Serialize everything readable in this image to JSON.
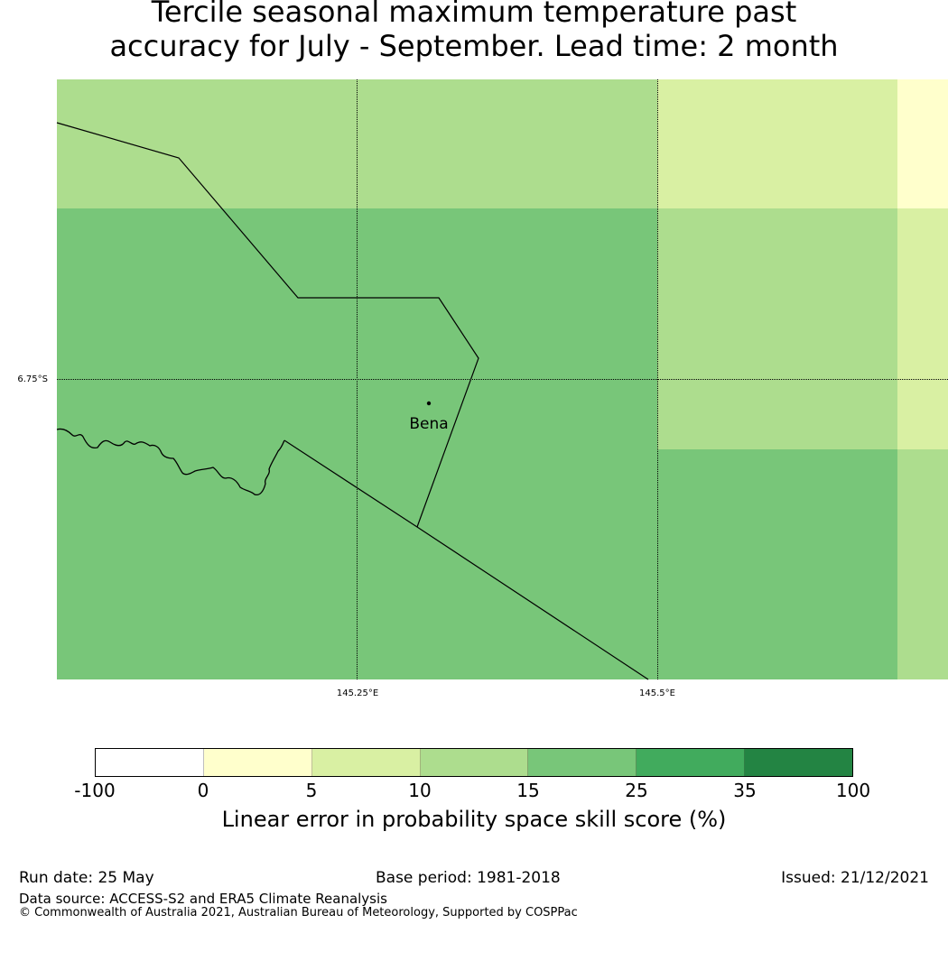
{
  "title": {
    "line1": "Tercile seasonal maximum temperature past",
    "line2": "accuracy for July - September. Lead time: 2 month"
  },
  "map": {
    "place_name": "Bena",
    "lon_labels": [
      "145.25°E",
      "145.5°E"
    ],
    "lat_labels": [
      "6.75°S"
    ],
    "colors": {
      "c0_5": "#ffffcc",
      "c5_10": "#d9f0a3",
      "c10_15": "#addd8e",
      "c15_25": "#78c679",
      "c25_35": "#41ab5d",
      "c35_100": "#238443",
      "cneg": "#ffffff"
    },
    "icons": [
      "border-line",
      "coastline",
      "town-marker"
    ]
  },
  "colorbar": {
    "colors": [
      "#ffffff",
      "#ffffcc",
      "#d9f0a3",
      "#addd8e",
      "#78c679",
      "#41ab5d",
      "#238443"
    ],
    "ticks": [
      "-100",
      "0",
      "5",
      "10",
      "15",
      "25",
      "35",
      "100"
    ],
    "label": "Linear error in probability space skill score (%)"
  },
  "footer": {
    "run_date": "Run date: 25 May",
    "base_period": "Base period: 1981-2018",
    "issued": "Issued: 21/12/2021",
    "data_source": "Data source: ACCESS-S2 and ERA5 Climate Reanalysis",
    "copyright": "© Commonwealth of Australia 2021, Australian Bureau of Meteorology, Supported by COSPPac"
  }
}
